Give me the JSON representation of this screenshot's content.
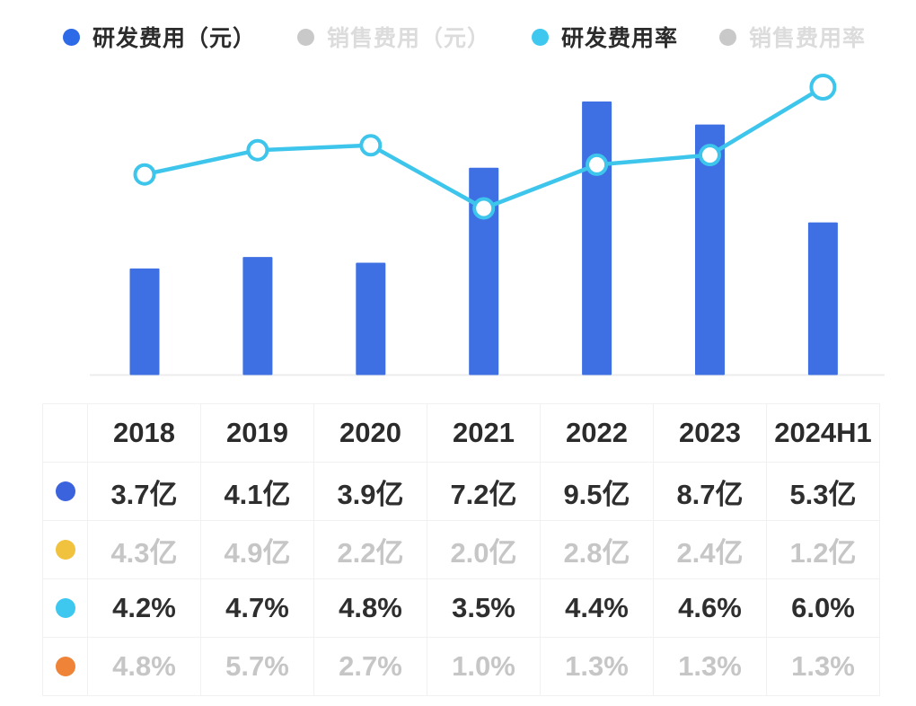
{
  "legend": {
    "items": [
      {
        "key": "rd-expense",
        "label": "研发费用（元）",
        "color": "#2d6ae8",
        "active": true
      },
      {
        "key": "sales-expense",
        "label": "销售费用（元）",
        "color": "#c9c9c9",
        "active": false
      },
      {
        "key": "rd-rate",
        "label": "研发费用率",
        "color": "#3ec8f0",
        "active": true
      },
      {
        "key": "sales-rate",
        "label": "销售费用率",
        "color": "#c9c9c9",
        "active": false
      }
    ]
  },
  "chart_data": {
    "type": "bar",
    "subtype": "bar+line combo",
    "title": "",
    "xlabel": "",
    "ylabel": "",
    "grid": false,
    "legend_position": "top",
    "categories": [
      "2018",
      "2019",
      "2020",
      "2021",
      "2022",
      "2023",
      "2024H1"
    ],
    "series": [
      {
        "name": "研发费用（元）",
        "type": "bar",
        "unit": "亿",
        "visible": true,
        "color": "#3e6fe3",
        "values": [
          3.7,
          4.1,
          3.9,
          7.2,
          9.5,
          8.7,
          5.3
        ]
      },
      {
        "name": "销售费用（元）",
        "type": "bar",
        "unit": "亿",
        "visible": false,
        "color": "#f0c23e",
        "values": [
          4.3,
          4.9,
          2.2,
          2.0,
          2.8,
          2.4,
          1.2
        ]
      },
      {
        "name": "研发费用率",
        "type": "line",
        "unit": "%",
        "visible": true,
        "color": "#3ec5ec",
        "values": [
          4.2,
          4.7,
          4.8,
          3.5,
          4.4,
          4.6,
          6.0
        ]
      },
      {
        "name": "销售费用率",
        "type": "line",
        "unit": "%",
        "visible": false,
        "color": "#ef8338",
        "values": [
          4.8,
          5.7,
          2.7,
          1.0,
          1.3,
          1.3,
          1.3
        ]
      }
    ],
    "bar_axis_range": [
      0,
      10
    ],
    "line_axis_range": [
      0,
      7
    ]
  },
  "table": {
    "corner_label": "",
    "header": [
      "2018",
      "2019",
      "2020",
      "2021",
      "2022",
      "2023",
      "2024H1"
    ],
    "rows": [
      {
        "key": "rd-expense",
        "dot_color": "#3b63de",
        "muted": false,
        "cells": [
          "3.7亿",
          "4.1亿",
          "3.9亿",
          "7.2亿",
          "9.5亿",
          "8.7亿",
          "5.3亿"
        ]
      },
      {
        "key": "sales-expense",
        "dot_color": "#f0c23e",
        "muted": true,
        "cells": [
          "4.3亿",
          "4.9亿",
          "2.2亿",
          "2.0亿",
          "2.8亿",
          "2.4亿",
          "1.2亿"
        ]
      },
      {
        "key": "rd-rate",
        "dot_color": "#3ec8f0",
        "muted": false,
        "cells": [
          "4.2%",
          "4.7%",
          "4.8%",
          "3.5%",
          "4.4%",
          "4.6%",
          "6.0%"
        ]
      },
      {
        "key": "sales-rate",
        "dot_color": "#ef8338",
        "muted": true,
        "cells": [
          "4.8%",
          "5.7%",
          "2.7%",
          "1.0%",
          "1.3%",
          "1.3%",
          "1.3%"
        ]
      }
    ]
  },
  "colors": {
    "bar_blue": "#3e6fe3",
    "line_cyan": "#3ec5ec",
    "axis_line": "#ececec",
    "table_border": "#f1f1f1",
    "text_dark": "#2b2b2b",
    "text_muted": "#c6c6c6"
  }
}
